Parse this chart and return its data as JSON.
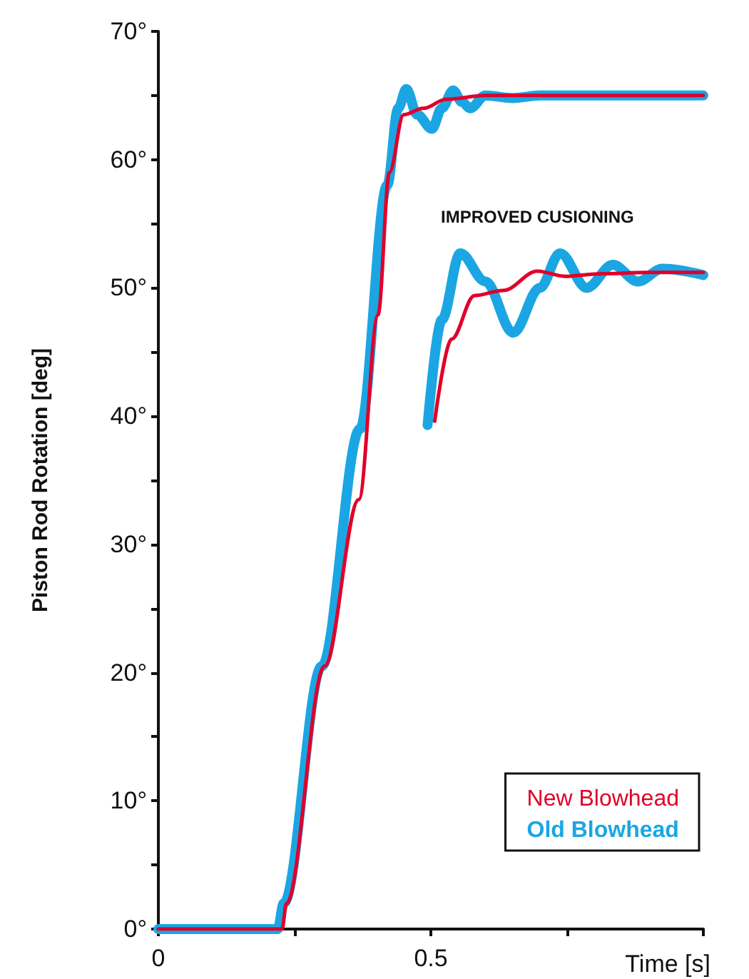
{
  "chart_data": {
    "type": "line",
    "xlabel": "Time [s]",
    "ylabel": "Piston Rod Rotation [deg]",
    "xlim": [
      0,
      1
    ],
    "xticks": [
      0,
      {
        "value": 0.25,
        "label": null
      },
      0.5,
      {
        "value": 0.75,
        "label": null
      },
      {
        "value": 1,
        "label": null
      }
    ],
    "ylim": [
      0,
      70
    ],
    "yticks": [
      {
        "value": 0,
        "label": "0°"
      },
      {
        "value": 5,
        "label": null
      },
      {
        "value": 10,
        "label": "10°"
      },
      {
        "value": 15,
        "label": null
      },
      {
        "value": 20,
        "label": "20°"
      },
      {
        "value": 25,
        "label": null
      },
      {
        "value": 30,
        "label": "30°"
      },
      {
        "value": 35,
        "label": null
      },
      {
        "value": 40,
        "label": "40°"
      },
      {
        "value": 45,
        "label": null
      },
      {
        "value": 50,
        "label": "50°"
      },
      {
        "value": 55,
        "label": null
      },
      {
        "value": 60,
        "label": "60°"
      },
      {
        "value": 65,
        "label": null
      },
      {
        "value": 70,
        "label": "70°"
      }
    ],
    "legend": "bottom right",
    "marker": "none",
    "line_style": "solid",
    "annotations": [
      "IMPROVED CUSIONING"
    ],
    "series": [
      {
        "name": "Old Blowhead",
        "color": "#1ba6e3",
        "x": [
          0,
          0.219,
          0.23,
          0.3,
          0.37,
          0.42,
          0.44,
          0.455,
          0.475,
          0.502,
          0.52,
          0.541,
          0.557,
          0.572,
          0.6,
          0.65,
          0.7,
          0.8,
          1
        ],
        "values": [
          0,
          0,
          2,
          20.5,
          39,
          58,
          64,
          65.5,
          63.5,
          62.4,
          64,
          65.4,
          64.5,
          64,
          65,
          64.8,
          65,
          65,
          65
        ]
      },
      {
        "name": "New Blowhead",
        "color": "#e0002a",
        "x": [
          0,
          0.227,
          0.235,
          0.305,
          0.368,
          0.403,
          0.424,
          0.45,
          0.486,
          0.528,
          0.6,
          0.8,
          1
        ],
        "values": [
          0,
          0,
          2,
          20.5,
          33.5,
          47.9,
          59,
          63.5,
          64,
          64.7,
          65,
          65,
          65
        ]
      },
      {
        "color": "#1ba6e3",
        "x": [
          0.494,
          0.52,
          0.554,
          0.6,
          0.651,
          0.7,
          0.737,
          0.786,
          0.834,
          0.88,
          0.925,
          1
        ],
        "values": [
          39.3,
          47.5,
          52.7,
          50.5,
          46.5,
          50,
          52.7,
          50,
          51.8,
          50.5,
          51.5,
          51
        ]
      },
      {
        "color": "#e0002a",
        "x": [
          0.507,
          0.538,
          0.58,
          0.633,
          0.695,
          0.747,
          0.81,
          0.9,
          1
        ],
        "values": [
          39.6,
          46,
          49.4,
          49.8,
          51.3,
          50.9,
          51.1,
          51.2,
          51.2
        ]
      }
    ]
  }
}
